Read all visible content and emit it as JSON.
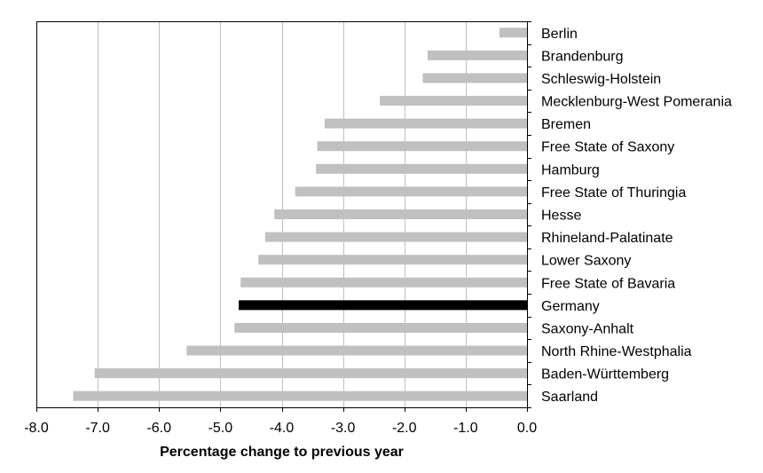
{
  "chart_data": {
    "type": "bar",
    "orientation": "horizontal",
    "xlabel": "Percentage change to previous year",
    "xlim": [
      -8.0,
      0.0
    ],
    "xticks": [
      -8.0,
      -7.0,
      -6.0,
      -5.0,
      -4.0,
      -3.0,
      -2.0,
      -1.0,
      0.0
    ],
    "xtick_labels": [
      "-8.0",
      "-7.0",
      "-6.0",
      "-5.0",
      "-4.0",
      "-3.0",
      "-2.0",
      "-1.0",
      "0.0"
    ],
    "grid": "vertical",
    "categories": [
      "Berlin",
      "Brandenburg",
      "Schleswig-Holstein",
      "Mecklenburg-West Pomerania",
      "Bremen",
      "Free State of Saxony",
      "Hamburg",
      "Free State of Thuringia",
      "Hesse",
      "Rhineland-Palatinate",
      "Lower Saxony",
      "Free State of Bavaria",
      "Germany",
      "Saxony-Anhalt",
      "North Rhine-Westphalia",
      "Baden-Württemberg",
      "Saarland"
    ],
    "values": [
      -0.45,
      -1.62,
      -1.7,
      -2.4,
      -3.3,
      -3.42,
      -3.44,
      -3.78,
      -4.12,
      -4.27,
      -4.38,
      -4.67,
      -4.7,
      -4.77,
      -5.55,
      -7.05,
      -7.4
    ],
    "highlight": "Germany",
    "colors": {
      "bar": "#c0c0c0",
      "highlight": "#000000",
      "grid": "#c0c0c0",
      "axis": "#000000"
    }
  }
}
